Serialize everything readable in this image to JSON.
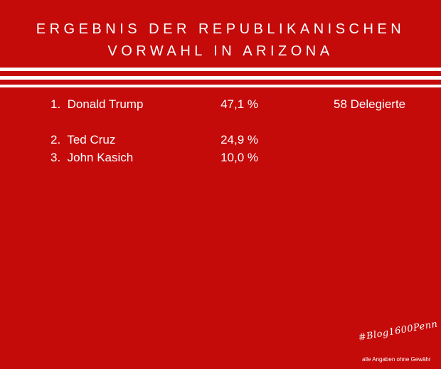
{
  "title": {
    "line1": "ERGEBNIS DER REPUBLIKANISCHEN",
    "line2": "VORWAHL IN ARIZONA"
  },
  "results": [
    {
      "rank_name": "1.  Donald Trump",
      "percent": "47,1 %",
      "delegates": "58 Delegierte"
    },
    {
      "rank_name": "2.  Ted Cruz",
      "percent": "24,9 %"
    },
    {
      "rank_name": "3.  John Kasich",
      "percent": "10,0 %"
    }
  ],
  "footer": {
    "hashtag": "#Blog1600Penn",
    "disclaimer": "alle Angaben ohne Gewähr"
  },
  "colors": {
    "background": "#c50a0a",
    "foreground": "#ffffff"
  }
}
